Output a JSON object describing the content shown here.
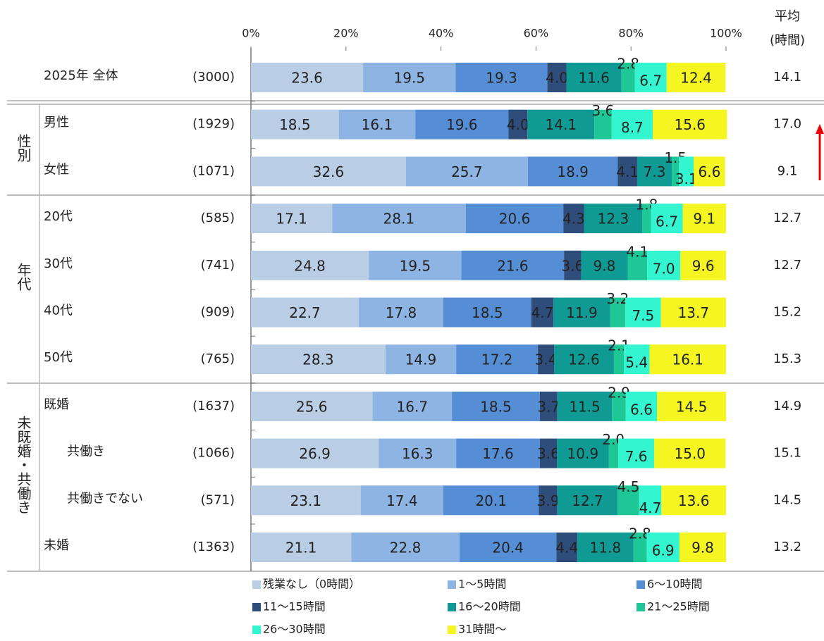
{
  "chart_data": {
    "type": "bar",
    "orientation": "horizontal",
    "stacked": true,
    "categories": [
      "2025年 全体",
      "男性",
      "女性",
      "20代",
      "30代",
      "40代",
      "50代",
      "既婚",
      "共働き",
      "共働きでない",
      "未婚"
    ],
    "sample_sizes": [
      "(3000)",
      "(1929)",
      "(1071)",
      "(585)",
      "(741)",
      "(909)",
      "(765)",
      "(1637)",
      "(1066)",
      "(571)",
      "(1363)"
    ],
    "group_labels": [
      "性別",
      "年代",
      "未既婚・共働き"
    ],
    "avg_header": [
      "平均",
      "(時間)"
    ],
    "averages": [
      "14.1",
      "17.0",
      "9.1",
      "12.7",
      "12.7",
      "15.2",
      "15.3",
      "14.9",
      "15.1",
      "14.5",
      "13.2"
    ],
    "xlim": [
      0,
      100
    ],
    "xticks": [
      {
        "value": 0,
        "label": "0%"
      },
      {
        "value": 20,
        "label": "20%"
      },
      {
        "value": 40,
        "label": "40%"
      },
      {
        "value": 60,
        "label": "60%"
      },
      {
        "value": 80,
        "label": "80%"
      },
      {
        "value": 100,
        "label": "100%"
      }
    ],
    "series": [
      {
        "name": "残業なし（0時間）",
        "color": "#b9cde5",
        "values": [
          23.6,
          18.5,
          32.6,
          17.1,
          24.8,
          22.7,
          28.3,
          25.6,
          26.9,
          23.1,
          21.1
        ],
        "value_labels": [
          "23.6",
          "18.5",
          "32.6",
          "17.1",
          "24.8",
          "22.7",
          "28.3",
          "25.6",
          "26.9",
          "23.1",
          "21.1"
        ]
      },
      {
        "name": "1～5時間",
        "color": "#8eb4e3",
        "values": [
          19.5,
          16.1,
          25.7,
          28.1,
          19.5,
          17.8,
          14.9,
          16.7,
          16.3,
          17.4,
          22.8
        ],
        "value_labels": [
          "19.5",
          "16.1",
          "25.7",
          "28.1",
          "19.5",
          "17.8",
          "14.9",
          "16.7",
          "16.3",
          "17.4",
          "22.8"
        ]
      },
      {
        "name": "6～10時間",
        "color": "#558ed5",
        "values": [
          19.3,
          19.6,
          18.9,
          20.6,
          21.6,
          18.5,
          17.2,
          18.5,
          17.6,
          20.1,
          20.4
        ],
        "value_labels": [
          "19.3",
          "19.6",
          "18.9",
          "20.6",
          "21.6",
          "18.5",
          "17.2",
          "18.5",
          "17.6",
          "20.1",
          "20.4"
        ]
      },
      {
        "name": "11～15時間",
        "color": "#2e4d7b",
        "values": [
          4.0,
          4.0,
          4.1,
          4.3,
          3.6,
          4.7,
          3.4,
          3.7,
          3.6,
          3.9,
          4.4
        ],
        "value_labels": [
          "4.0",
          "4.0",
          "4.1",
          "4.3",
          "3.6",
          "4.7",
          "3.4",
          "3.7",
          "3.6",
          "3.9",
          "4.4"
        ]
      },
      {
        "name": "16～20時間",
        "color": "#0f9a93",
        "values": [
          11.6,
          14.1,
          7.3,
          12.3,
          9.8,
          11.9,
          12.6,
          11.5,
          10.9,
          12.7,
          11.8
        ],
        "value_labels": [
          "11.6",
          "14.1",
          "7.3",
          "12.3",
          "9.8",
          "11.9",
          "12.6",
          "11.5",
          "10.9",
          "12.7",
          "11.8"
        ]
      },
      {
        "name": "21～25時間",
        "color": "#1ec896",
        "values": [
          2.8,
          3.6,
          1.5,
          1.8,
          4.1,
          3.2,
          2.1,
          2.9,
          2.0,
          4.5,
          2.8
        ],
        "value_labels": [
          "2.8",
          "3.6",
          "1.5",
          "1.8",
          "4.1",
          "3.2",
          "2.1",
          "2.9",
          "2.0",
          "4.5",
          "2.8"
        ]
      },
      {
        "name": "26～30時間",
        "color": "#33f5cf",
        "values": [
          6.7,
          8.7,
          3.1,
          6.7,
          7.0,
          7.5,
          5.4,
          6.6,
          7.6,
          4.7,
          6.9
        ],
        "value_labels": [
          "6.7",
          "8.7",
          "3.1",
          "6.7",
          "7.0",
          "7.5",
          "5.4",
          "6.6",
          "7.6",
          "4.7",
          "6.9"
        ]
      },
      {
        "name": "31時間～",
        "color": "#f5f522",
        "values": [
          12.4,
          15.6,
          6.6,
          9.1,
          9.6,
          13.7,
          16.1,
          14.5,
          15.0,
          13.6,
          9.8
        ],
        "value_labels": [
          "12.4",
          "15.6",
          "6.6",
          "9.1",
          "9.6",
          "13.7",
          "16.1",
          "14.5",
          "15.0",
          "13.6",
          "9.8"
        ]
      }
    ]
  }
}
